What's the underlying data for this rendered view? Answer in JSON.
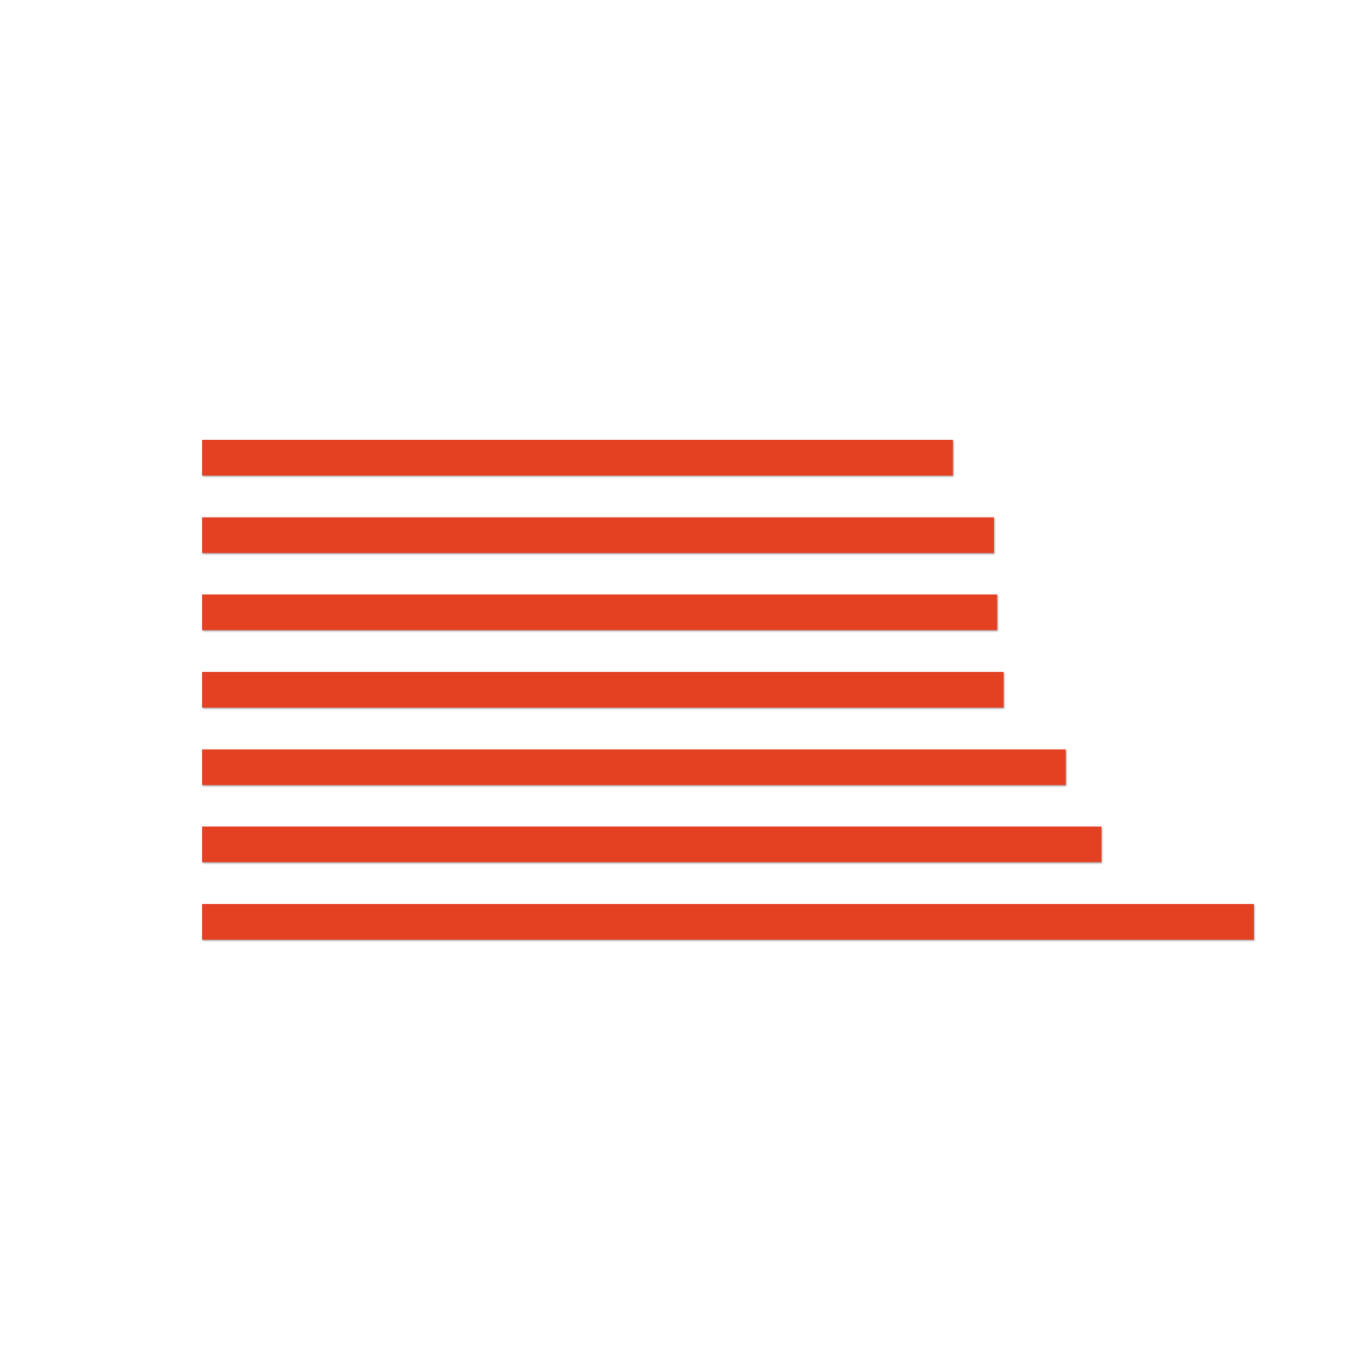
{
  "chart_data": {
    "type": "bar",
    "orientation": "horizontal",
    "values": [
      71.4,
      75.3,
      75.6,
      76.2,
      82.1,
      85.5,
      100
    ],
    "xlim": [
      0,
      100
    ],
    "bar_color": "#e43f22",
    "grid": false,
    "legend": "none"
  }
}
